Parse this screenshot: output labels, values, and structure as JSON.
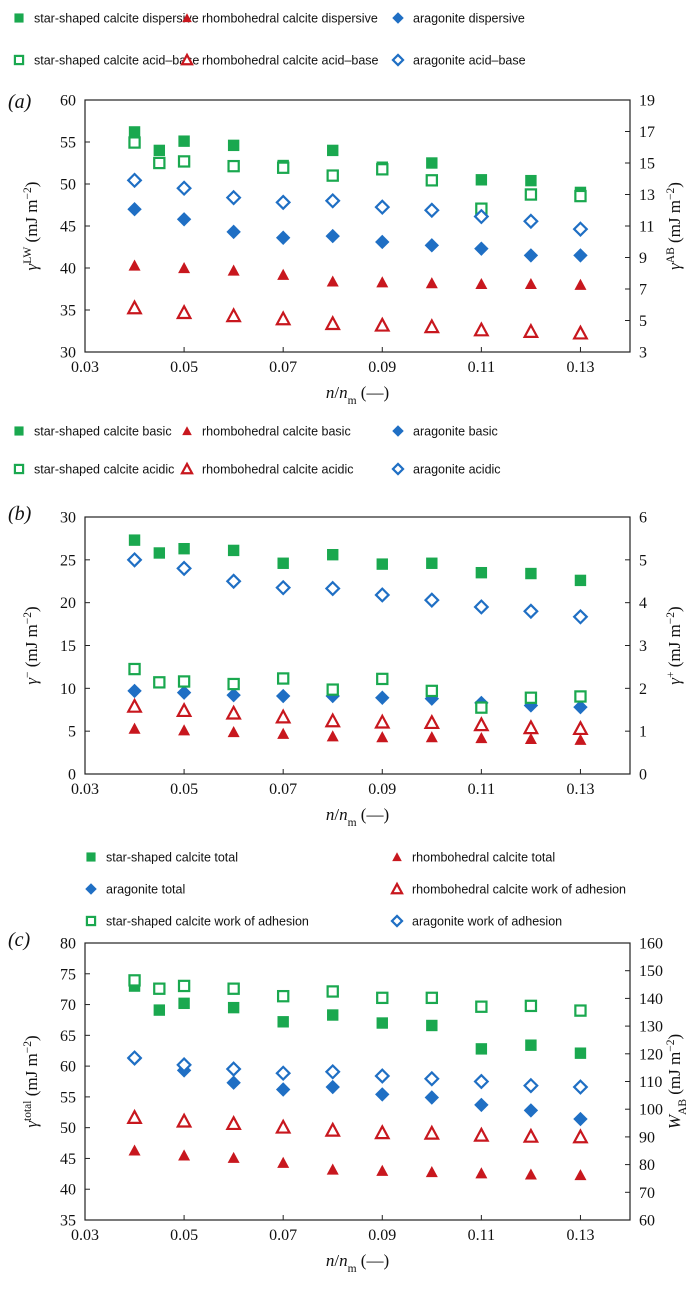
{
  "colors": {
    "green": "#1aa84f",
    "red": "#c8171e",
    "blue": "#1f6fc4"
  },
  "chart_data": [
    {
      "type": "scatter",
      "panel_label": "(a)",
      "xlabel_parts": [
        {
          "t": "n",
          "i": true
        },
        {
          "t": "/",
          "i": false
        },
        {
          "t": "n",
          "i": true
        },
        {
          "t": "m",
          "i": false,
          "sub": true
        },
        {
          "t": " (—)",
          "i": false
        }
      ],
      "ylabel_left_parts": [
        {
          "t": "γ",
          "i": true
        },
        {
          "t": "LW",
          "i": false,
          "sup": true
        },
        {
          "t": " (mJ m",
          "i": false
        },
        {
          "t": "−2",
          "i": false,
          "sup": true
        },
        {
          "t": ")",
          "i": false
        }
      ],
      "ylabel_right_parts": [
        {
          "t": "γ",
          "i": true
        },
        {
          "t": "AB",
          "i": false,
          "sup": true
        },
        {
          "t": " (mJ m",
          "i": false
        },
        {
          "t": "−2",
          "i": false,
          "sup": true
        },
        {
          "t": ")",
          "i": false
        }
      ],
      "xlim": [
        0.03,
        0.14
      ],
      "ylim_left": [
        30,
        60
      ],
      "ylim_right": [
        3,
        19
      ],
      "x_ticks": [
        "0.03",
        "0.05",
        "0.07",
        "0.09",
        "0.11",
        "0.13"
      ],
      "y_left_ticks": [
        "30",
        "35",
        "40",
        "45",
        "50",
        "55",
        "60"
      ],
      "y_right_ticks": [
        "3",
        "5",
        "7",
        "9",
        "11",
        "13",
        "15",
        "17",
        "19"
      ],
      "legend_columns": 3,
      "series": [
        {
          "name": "star-shaped calcite dispersive",
          "marker": "square",
          "fill": true,
          "color": "green",
          "axis": "left",
          "x": [
            0.04,
            0.045,
            0.05,
            0.06,
            0.07,
            0.08,
            0.09,
            0.1,
            0.11,
            0.12,
            0.13
          ],
          "y": [
            56.2,
            54.0,
            55.1,
            54.6,
            52.2,
            54.0,
            52.0,
            52.5,
            50.5,
            50.4,
            49.0
          ]
        },
        {
          "name": "rhombohedral calcite dispersive",
          "marker": "triangle",
          "fill": true,
          "color": "red",
          "axis": "left",
          "x": [
            0.04,
            0.05,
            0.06,
            0.07,
            0.08,
            0.09,
            0.1,
            0.11,
            0.12,
            0.13
          ],
          "y": [
            40.3,
            40.0,
            39.7,
            39.2,
            38.4,
            38.3,
            38.2,
            38.1,
            38.1,
            38.0
          ]
        },
        {
          "name": "aragonite dispersive",
          "marker": "diamond",
          "fill": true,
          "color": "blue",
          "axis": "left",
          "x": [
            0.04,
            0.05,
            0.06,
            0.07,
            0.08,
            0.09,
            0.1,
            0.11,
            0.12,
            0.13
          ],
          "y": [
            47.0,
            45.8,
            44.3,
            43.6,
            43.8,
            43.1,
            42.7,
            42.3,
            41.5,
            41.5
          ]
        },
        {
          "name": "star-shaped calcite acid–base",
          "marker": "square",
          "fill": false,
          "color": "green",
          "axis": "right",
          "x": [
            0.04,
            0.045,
            0.05,
            0.06,
            0.07,
            0.08,
            0.09,
            0.1,
            0.11,
            0.12,
            0.13
          ],
          "y": [
            16.3,
            15.0,
            15.1,
            14.8,
            14.7,
            14.2,
            14.6,
            13.9,
            12.1,
            13.0,
            12.9
          ]
        },
        {
          "name": "rhombohedral calcite acid–base",
          "marker": "triangle",
          "fill": false,
          "color": "red",
          "axis": "right",
          "x": [
            0.04,
            0.05,
            0.06,
            0.07,
            0.08,
            0.09,
            0.1,
            0.11,
            0.12,
            0.13
          ],
          "y": [
            5.8,
            5.5,
            5.3,
            5.1,
            4.8,
            4.7,
            4.6,
            4.4,
            4.3,
            4.2
          ]
        },
        {
          "name": "aragonite acid–base",
          "marker": "diamond",
          "fill": false,
          "color": "blue",
          "axis": "right",
          "x": [
            0.04,
            0.05,
            0.06,
            0.07,
            0.08,
            0.09,
            0.1,
            0.11,
            0.12,
            0.13
          ],
          "y": [
            13.9,
            13.4,
            12.8,
            12.5,
            12.6,
            12.2,
            12.0,
            11.6,
            11.3,
            10.8
          ]
        }
      ]
    },
    {
      "type": "scatter",
      "panel_label": "(b)",
      "xlabel_parts": [
        {
          "t": "n",
          "i": true
        },
        {
          "t": "/",
          "i": false
        },
        {
          "t": "n",
          "i": true
        },
        {
          "t": "m",
          "i": false,
          "sub": true
        },
        {
          "t": " (—)",
          "i": false
        }
      ],
      "ylabel_left_parts": [
        {
          "t": "γ",
          "i": true
        },
        {
          "t": "−",
          "i": false,
          "sup": true
        },
        {
          "t": " (mJ m",
          "i": false
        },
        {
          "t": "−2",
          "i": false,
          "sup": true
        },
        {
          "t": ")",
          "i": false
        }
      ],
      "ylabel_right_parts": [
        {
          "t": "γ",
          "i": true
        },
        {
          "t": "+",
          "i": false,
          "sup": true
        },
        {
          "t": " (mJ m",
          "i": false
        },
        {
          "t": "−2",
          "i": false,
          "sup": true
        },
        {
          "t": ")",
          "i": false
        }
      ],
      "xlim": [
        0.03,
        0.14
      ],
      "ylim_left": [
        0,
        30
      ],
      "ylim_right": [
        0,
        6
      ],
      "x_ticks": [
        "0.03",
        "0.05",
        "0.07",
        "0.09",
        "0.11",
        "0.13"
      ],
      "y_left_ticks": [
        "0",
        "5",
        "10",
        "15",
        "20",
        "25",
        "30"
      ],
      "y_right_ticks": [
        "0",
        "1",
        "2",
        "3",
        "4",
        "5",
        "6"
      ],
      "legend_columns": 3,
      "series": [
        {
          "name": "star-shaped calcite basic",
          "marker": "square",
          "fill": true,
          "color": "green",
          "axis": "left",
          "x": [
            0.04,
            0.045,
            0.05,
            0.06,
            0.07,
            0.08,
            0.09,
            0.1,
            0.11,
            0.12,
            0.13
          ],
          "y": [
            27.3,
            25.8,
            26.3,
            26.1,
            24.6,
            25.6,
            24.5,
            24.6,
            23.5,
            23.4,
            22.6
          ]
        },
        {
          "name": "rhombohedral calcite basic",
          "marker": "triangle",
          "fill": true,
          "color": "red",
          "axis": "left",
          "x": [
            0.04,
            0.05,
            0.06,
            0.07,
            0.08,
            0.09,
            0.1,
            0.11,
            0.12,
            0.13
          ],
          "y": [
            5.3,
            5.1,
            4.9,
            4.7,
            4.4,
            4.3,
            4.3,
            4.2,
            4.1,
            4.0
          ]
        },
        {
          "name": "aragonite basic",
          "marker": "diamond",
          "fill": true,
          "color": "blue",
          "axis": "left",
          "x": [
            0.04,
            0.05,
            0.06,
            0.07,
            0.08,
            0.09,
            0.1,
            0.11,
            0.12,
            0.13
          ],
          "y": [
            9.7,
            9.5,
            9.2,
            9.1,
            9.1,
            8.9,
            8.8,
            8.3,
            8.0,
            7.8
          ]
        },
        {
          "name": "star-shaped calcite acidic",
          "marker": "square",
          "fill": false,
          "color": "green",
          "axis": "right",
          "x": [
            0.04,
            0.045,
            0.05,
            0.06,
            0.07,
            0.08,
            0.09,
            0.1,
            0.11,
            0.12,
            0.13
          ],
          "y": [
            2.45,
            2.14,
            2.16,
            2.1,
            2.23,
            1.97,
            2.22,
            1.94,
            1.55,
            1.78,
            1.81
          ]
        },
        {
          "name": "rhombohedral calcite acidic",
          "marker": "triangle",
          "fill": false,
          "color": "red",
          "axis": "right",
          "x": [
            0.04,
            0.05,
            0.06,
            0.07,
            0.08,
            0.09,
            0.1,
            0.11,
            0.12,
            0.13
          ],
          "y": [
            1.58,
            1.48,
            1.42,
            1.33,
            1.24,
            1.21,
            1.2,
            1.15,
            1.08,
            1.06
          ]
        },
        {
          "name": "aragonite acidic",
          "marker": "diamond",
          "fill": false,
          "color": "blue",
          "axis": "right",
          "x": [
            0.04,
            0.05,
            0.06,
            0.07,
            0.08,
            0.09,
            0.1,
            0.11,
            0.12,
            0.13
          ],
          "y": [
            5.0,
            4.8,
            4.5,
            4.35,
            4.33,
            4.18,
            4.06,
            3.9,
            3.8,
            3.67
          ]
        }
      ]
    },
    {
      "type": "scatter",
      "panel_label": "(c)",
      "xlabel_parts": [
        {
          "t": "n",
          "i": true
        },
        {
          "t": "/",
          "i": false
        },
        {
          "t": "n",
          "i": true
        },
        {
          "t": "m",
          "i": false,
          "sub": true
        },
        {
          "t": " (—)",
          "i": false
        }
      ],
      "ylabel_left_parts": [
        {
          "t": "γ",
          "i": true
        },
        {
          "t": "total",
          "i": false,
          "sup": true
        },
        {
          "t": " (mJ m",
          "i": false
        },
        {
          "t": "−2",
          "i": false,
          "sup": true
        },
        {
          "t": ")",
          "i": false
        }
      ],
      "ylabel_right_parts": [
        {
          "t": "W",
          "i": true
        },
        {
          "t": "AB",
          "i": false,
          "sub": true
        },
        {
          "t": " (mJ m",
          "i": false
        },
        {
          "t": "−2",
          "i": false,
          "sup": true
        },
        {
          "t": ")",
          "i": false
        }
      ],
      "xlim": [
        0.03,
        0.14
      ],
      "ylim_left": [
        35,
        80
      ],
      "ylim_right": [
        60,
        160
      ],
      "x_ticks": [
        "0.03",
        "0.05",
        "0.07",
        "0.09",
        "0.11",
        "0.13"
      ],
      "y_left_ticks": [
        "35",
        "40",
        "45",
        "50",
        "55",
        "60",
        "65",
        "70",
        "75",
        "80"
      ],
      "y_right_ticks": [
        "60",
        "70",
        "80",
        "90",
        "100",
        "110",
        "120",
        "130",
        "140",
        "150",
        "160"
      ],
      "legend_columns": 2,
      "series": [
        {
          "name": "star-shaped calcite total",
          "marker": "square",
          "fill": true,
          "color": "green",
          "axis": "left",
          "x": [
            0.04,
            0.045,
            0.05,
            0.06,
            0.07,
            0.08,
            0.09,
            0.1,
            0.11,
            0.12,
            0.13
          ],
          "y": [
            73.0,
            69.1,
            70.2,
            69.5,
            67.2,
            68.3,
            67.0,
            66.6,
            62.8,
            63.4,
            62.1
          ]
        },
        {
          "name": "rhombohedral calcite total",
          "marker": "triangle",
          "fill": true,
          "color": "red",
          "axis": "left",
          "x": [
            0.04,
            0.05,
            0.06,
            0.07,
            0.08,
            0.09,
            0.1,
            0.11,
            0.12,
            0.13
          ],
          "y": [
            46.3,
            45.5,
            45.1,
            44.3,
            43.2,
            43.0,
            42.8,
            42.6,
            42.4,
            42.3
          ]
        },
        {
          "name": "aragonite total",
          "marker": "diamond",
          "fill": true,
          "color": "blue",
          "axis": "left",
          "x": [
            0.04,
            0.05,
            0.06,
            0.07,
            0.08,
            0.09,
            0.1,
            0.11,
            0.12,
            0.13
          ],
          "y": [
            61.2,
            59.3,
            57.3,
            56.2,
            56.6,
            55.4,
            54.9,
            53.7,
            52.8,
            51.4
          ]
        },
        {
          "name": "rhombohedral calcite work of adhesion",
          "marker": "triangle",
          "fill": false,
          "color": "red",
          "axis": "right",
          "x": [
            0.04,
            0.05,
            0.06,
            0.07,
            0.08,
            0.09,
            0.1,
            0.11,
            0.12,
            0.13
          ],
          "y": [
            97.0,
            95.7,
            94.8,
            93.5,
            92.4,
            91.5,
            91.3,
            90.6,
            90.2,
            90.0
          ]
        },
        {
          "name": "star-shaped calcite work of adhesion",
          "marker": "square",
          "fill": false,
          "color": "green",
          "axis": "right",
          "x": [
            0.04,
            0.045,
            0.05,
            0.06,
            0.07,
            0.08,
            0.09,
            0.1,
            0.11,
            0.12,
            0.13
          ],
          "y": [
            146.5,
            143.5,
            144.5,
            143.5,
            140.8,
            142.5,
            140.2,
            140.2,
            137.0,
            137.3,
            135.6
          ]
        },
        {
          "name": "aragonite work of adhesion",
          "marker": "diamond",
          "fill": false,
          "color": "blue",
          "axis": "right",
          "x": [
            0.04,
            0.05,
            0.06,
            0.07,
            0.08,
            0.09,
            0.1,
            0.11,
            0.12,
            0.13
          ],
          "y": [
            118.5,
            116.0,
            114.5,
            113.0,
            113.5,
            112.0,
            111.0,
            110.0,
            108.5,
            108.0
          ]
        }
      ]
    }
  ]
}
